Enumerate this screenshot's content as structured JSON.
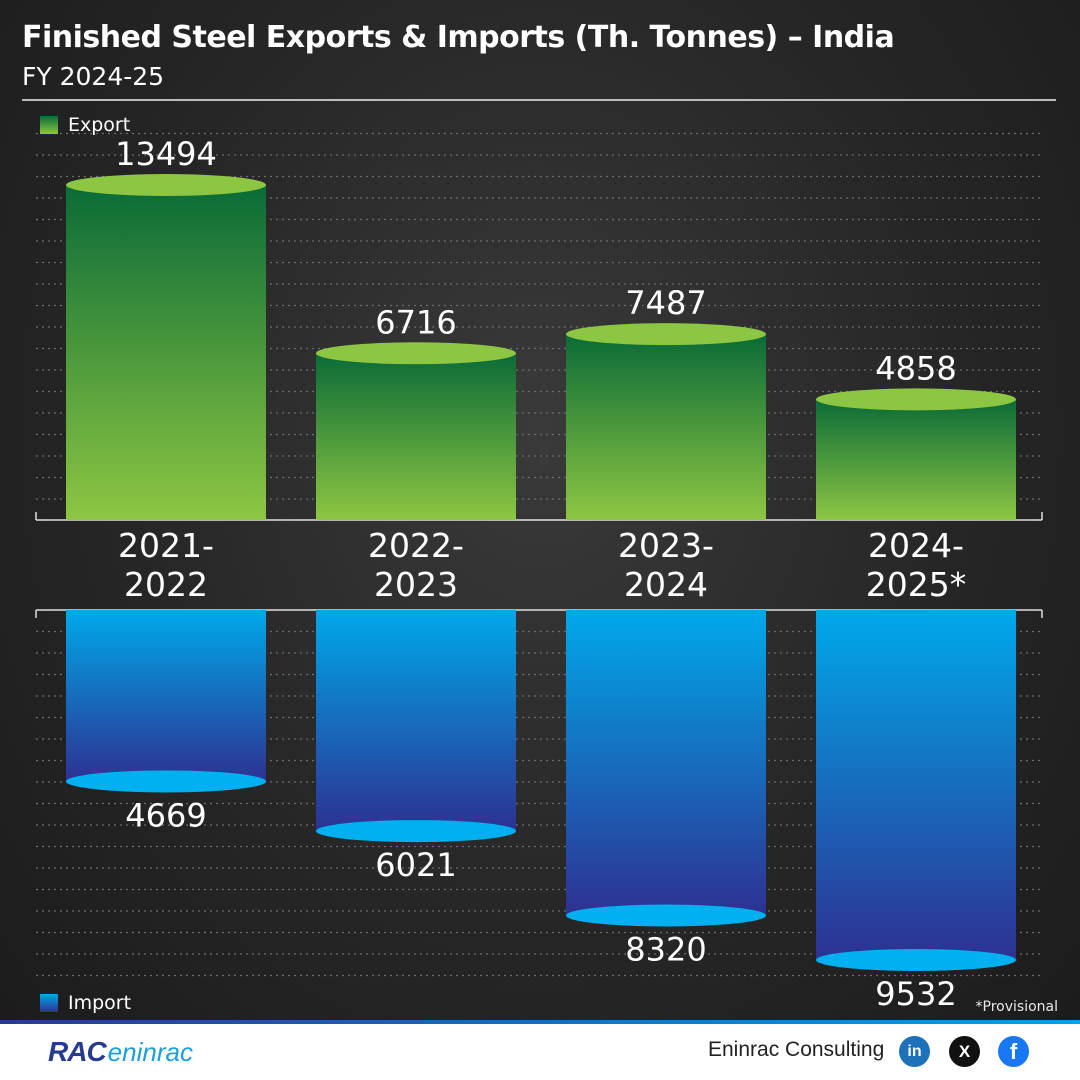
{
  "header": {
    "title": "Finished Steel Exports & Imports (Th. Tonnes) – India",
    "subtitle": "FY 2024-25"
  },
  "footnote": "*Provisional",
  "footer": {
    "logo_primary": "RAC",
    "logo_secondary": "eninrac",
    "brand": "Eninrac Consulting",
    "social": [
      {
        "name": "linkedin-icon",
        "glyph": "in"
      },
      {
        "name": "x-icon",
        "glyph": "X"
      },
      {
        "name": "facebook-icon",
        "glyph": "f"
      }
    ]
  },
  "colors": {
    "export_top": "#0a6b37",
    "export_bottom": "#8dc642",
    "export_cap": "#8dc642",
    "import_top": "#00a9ea",
    "import_bottom": "#2e3192",
    "import_cap": "#00b0f0"
  },
  "chart_data": {
    "type": "bar",
    "categories": [
      [
        "2021-",
        "2022"
      ],
      [
        "2022-",
        "2023"
      ],
      [
        "2023-",
        "2024"
      ],
      [
        "2024-",
        "2025*"
      ]
    ],
    "series": [
      {
        "name": "Export",
        "values": [
          13494,
          6716,
          7487,
          4858
        ]
      },
      {
        "name": "Import",
        "values": [
          4669,
          6021,
          8320,
          9532
        ]
      }
    ],
    "title": "Finished Steel Exports & Imports (Th. Tonnes) – India",
    "legend": [
      "Export",
      "Import"
    ],
    "grid": true
  }
}
